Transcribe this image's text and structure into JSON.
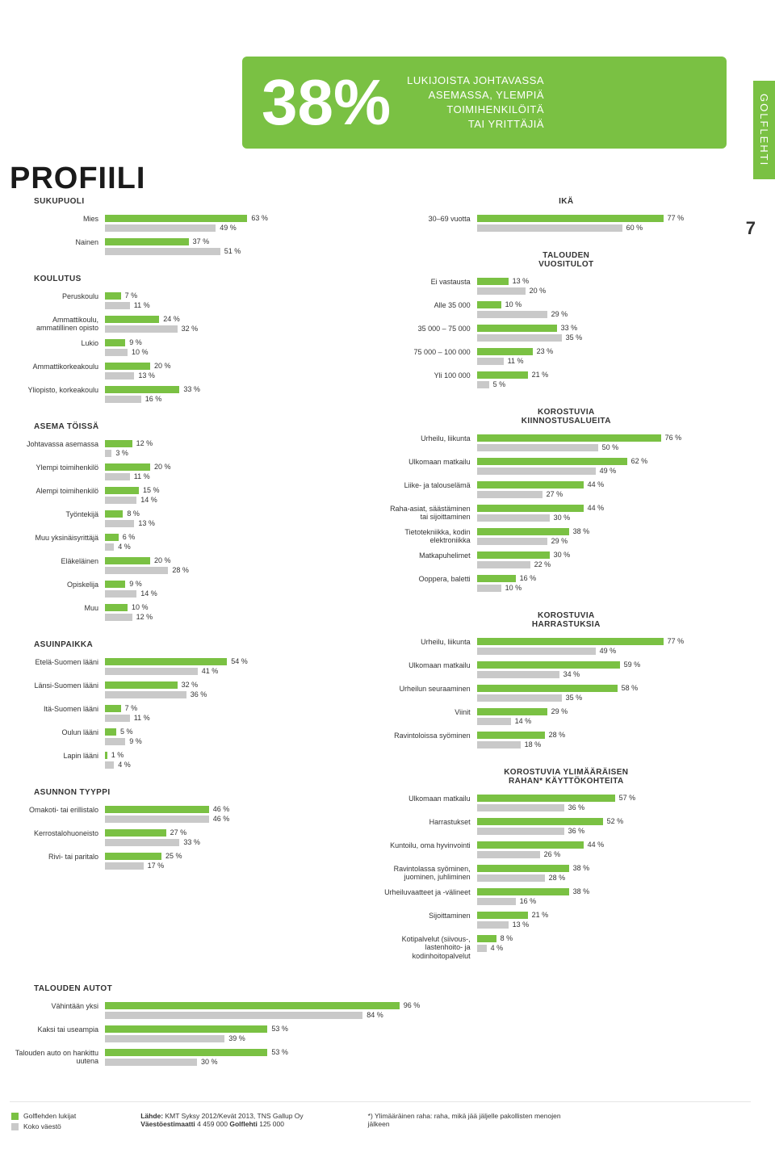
{
  "side_tab": "GOLFLEHTI",
  "page_title": "PROFIILI",
  "page_number": "7",
  "hero": {
    "big": "38%",
    "lines": [
      "LUKIJOISTA JOHTAVASSA",
      "ASEMASSA, YLEMPIÄ",
      "TOIMIHENKILÖITÄ",
      "TAI YRITTÄJIÄ"
    ]
  },
  "colors": {
    "primary": "#7ac143",
    "secondary": "#c9c9c9",
    "text": "#333333",
    "bg": "#ffffff"
  },
  "bar_scale_max": 100,
  "groups": [
    {
      "id": "sukupuoli",
      "col": "left",
      "title": "SUKUPUOLI",
      "title_align": "left",
      "rows": [
        {
          "label": "Mies",
          "a": 63,
          "b": 49
        },
        {
          "label": "Nainen",
          "a": 37,
          "b": 51
        }
      ]
    },
    {
      "id": "ika",
      "col": "right",
      "title": "IKÄ",
      "rows": [
        {
          "label": "30–69 vuotta",
          "a": 77,
          "b": 60
        }
      ]
    },
    {
      "id": "koulutus",
      "col": "left",
      "title": "KOULUTUS",
      "title_align": "left",
      "rows": [
        {
          "label": "Peruskoulu",
          "a": 7,
          "b": 11
        },
        {
          "label": "Ammattikoulu, ammatillinen opisto",
          "a": 24,
          "b": 32
        },
        {
          "label": "Lukio",
          "a": 9,
          "b": 10
        },
        {
          "label": "Ammattikorkeakoulu",
          "a": 20,
          "b": 13
        },
        {
          "label": "Yliopisto, korkeakoulu",
          "a": 33,
          "b": 16
        }
      ]
    },
    {
      "id": "vuositulot",
      "col": "right",
      "title": "TALOUDEN\nVUOSITULOT",
      "rows": [
        {
          "label": "Ei vastausta",
          "a": 13,
          "b": 20
        },
        {
          "label": "Alle 35 000",
          "a": 10,
          "b": 29
        },
        {
          "label": "35 000 – 75 000",
          "a": 33,
          "b": 35
        },
        {
          "label": "75 000 – 100 000",
          "a": 23,
          "b": 11
        },
        {
          "label": "Yli 100 000",
          "a": 21,
          "b": 5
        }
      ]
    },
    {
      "id": "asema",
      "col": "left",
      "title": "ASEMA TÖISSÄ",
      "title_align": "left",
      "rows": [
        {
          "label": "Johtavassa asemassa",
          "a": 12,
          "b": 3
        },
        {
          "label": "Ylempi toimihenkilö",
          "a": 20,
          "b": 11
        },
        {
          "label": "Alempi toimihenkilö",
          "a": 15,
          "b": 14
        },
        {
          "label": "Työntekijä",
          "a": 8,
          "b": 13
        },
        {
          "label": "Muu yksinäisyrittäjä",
          "a": 6,
          "b": 4
        },
        {
          "label": "Eläkeläinen",
          "a": 20,
          "b": 28
        },
        {
          "label": "Opiskelija",
          "a": 9,
          "b": 14
        },
        {
          "label": "Muu",
          "a": 10,
          "b": 12
        }
      ]
    },
    {
      "id": "kiinnostus",
      "col": "right",
      "title": "KOROSTUVIA\nKIINNOSTUSALUEITA",
      "rows": [
        {
          "label": "Urheilu, liikunta",
          "a": 76,
          "b": 50
        },
        {
          "label": "Ulkomaan matkailu",
          "a": 62,
          "b": 49
        },
        {
          "label": "Liike- ja talouselämä",
          "a": 44,
          "b": 27
        },
        {
          "label": "Raha-asiat, säästäminen tai sijoittaminen",
          "a": 44,
          "b": 30
        },
        {
          "label": "Tietotekniikka, kodin elektroniikka",
          "a": 38,
          "b": 29
        },
        {
          "label": "Matkapuhelimet",
          "a": 30,
          "b": 22
        },
        {
          "label": "Ooppera, baletti",
          "a": 16,
          "b": 10
        }
      ]
    },
    {
      "id": "asuinpaikka",
      "col": "left",
      "title": "ASUINPAIKKA",
      "title_align": "left",
      "rows": [
        {
          "label": "Etelä-Suomen lääni",
          "a": 54,
          "b": 41
        },
        {
          "label": "Länsi-Suomen lääni",
          "a": 32,
          "b": 36
        },
        {
          "label": "Itä-Suomen lääni",
          "a": 7,
          "b": 11
        },
        {
          "label": "Oulun lääni",
          "a": 5,
          "b": 9
        },
        {
          "label": "Lapin lääni",
          "a": 1,
          "b": 4
        }
      ]
    },
    {
      "id": "harrastuksia",
      "col": "right",
      "title": "KOROSTUVIA\nHARRASTUKSIA",
      "rows": [
        {
          "label": "Urheilu, liikunta",
          "a": 77,
          "b": 49
        },
        {
          "label": "Ulkomaan matkailu",
          "a": 59,
          "b": 34
        },
        {
          "label": "Urheilun seuraaminen",
          "a": 58,
          "b": 35
        },
        {
          "label": "Viinit",
          "a": 29,
          "b": 14
        },
        {
          "label": "Ravintoloissa syöminen",
          "a": 28,
          "b": 18
        }
      ]
    },
    {
      "id": "asunnon_tyyppi",
      "col": "left",
      "title": "ASUNNON TYYPPI",
      "title_align": "left",
      "rows": [
        {
          "label": "Omakoti- tai erillistalo",
          "a": 46,
          "b": 46
        },
        {
          "label": "Kerrostalohuoneisto",
          "a": 27,
          "b": 33
        },
        {
          "label": "Rivi- tai paritalo",
          "a": 25,
          "b": 17
        }
      ]
    },
    {
      "id": "rahan_kaytto",
      "col": "right",
      "title": "KOROSTUVIA YLIMÄÄRÄISEN\nRAHAN* KÄYTTÖKOHTEITA",
      "rows": [
        {
          "label": "Ulkomaan matkailu",
          "a": 57,
          "b": 36
        },
        {
          "label": "Harrastukset",
          "a": 52,
          "b": 36
        },
        {
          "label": "Kuntoilu, oma hyvinvointi",
          "a": 44,
          "b": 26
        },
        {
          "label": "Ravintolassa syöminen, juominen, juhliminen",
          "a": 38,
          "b": 28
        },
        {
          "label": "Urheiluvaatteet ja -välineet",
          "a": 38,
          "b": 16
        },
        {
          "label": "Sijoittaminen",
          "a": 21,
          "b": 13
        },
        {
          "label": "Kotipalvelut (siivous-, lastenhoito- ja kodinhoitopalvelut",
          "a": 8,
          "b": 4
        }
      ]
    },
    {
      "id": "autot",
      "col": "left",
      "title": "TALOUDEN AUTOT",
      "title_align": "left",
      "full": true,
      "rows": [
        {
          "label": "Vähintään yksi",
          "a": 96,
          "b": 84
        },
        {
          "label": "Kaksi tai useampia",
          "a": 53,
          "b": 39
        },
        {
          "label": "Talouden auto on hankittu uutena",
          "a": 53,
          "b": 30
        }
      ]
    }
  ],
  "legend": {
    "a": "Golflehden lukijat",
    "b": "Koko väestö"
  },
  "footer": {
    "source_label": "Lähde:",
    "source": "KMT Syksy 2012/Kevät 2013, TNS Gallup Oy",
    "estimate_label": "Väestöestimaatti",
    "estimate": "4 459 000",
    "mag_label": "Golflehti",
    "mag_val": "125 000",
    "note": "*) Ylimääräinen raha: raha, mikä jää jäljelle pakollisten menojen jälkeen"
  }
}
